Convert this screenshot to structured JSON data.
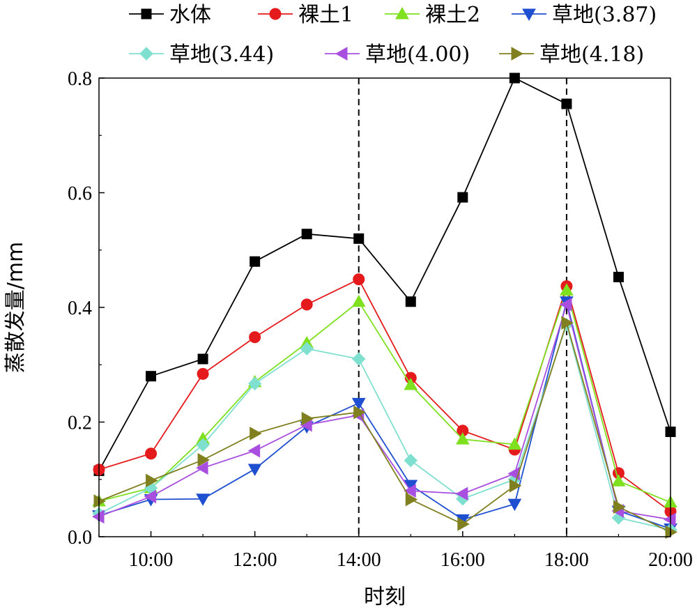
{
  "chart_data": {
    "type": "line",
    "xlabel": "时刻",
    "ylabel": "蒸散发量/mm",
    "x": [
      9,
      10,
      11,
      12,
      13,
      14,
      15,
      16,
      17,
      18,
      19,
      20
    ],
    "xlim": [
      9,
      20
    ],
    "ylim": [
      0,
      0.8
    ],
    "x_ticks": [
      10,
      12,
      14,
      16,
      18,
      20
    ],
    "x_tick_labels": [
      "10:00",
      "12:00",
      "14:00",
      "16:00",
      "18:00",
      "20:00"
    ],
    "y_ticks": [
      0,
      0.2,
      0.4,
      0.6,
      0.8
    ],
    "y_tick_labels": [
      "0.0",
      "0.2",
      "0.4",
      "0.6",
      "0.8"
    ],
    "reference_lines_x": [
      14,
      18
    ],
    "legend_position": "top",
    "grid": false,
    "series": [
      {
        "name": "水体",
        "color": "#000000",
        "marker": "square",
        "values": [
          0.115,
          0.28,
          0.31,
          0.48,
          0.528,
          0.52,
          0.41,
          0.592,
          0.8,
          0.755,
          0.453,
          0.183
        ]
      },
      {
        "name": "裸土1",
        "color": "#e41a1c",
        "marker": "circle",
        "values": [
          0.117,
          0.145,
          0.284,
          0.348,
          0.405,
          0.449,
          0.277,
          0.185,
          0.152,
          0.437,
          0.111,
          0.044
        ]
      },
      {
        "name": "裸土2",
        "color": "#7fe01f",
        "marker": "triangle-up",
        "values": [
          0.062,
          0.085,
          0.171,
          0.27,
          0.338,
          0.41,
          0.265,
          0.17,
          0.161,
          0.43,
          0.097,
          0.06
        ]
      },
      {
        "name": "草地(3.87)",
        "color": "#1f4fd1",
        "marker": "triangle-down",
        "values": [
          0.037,
          0.065,
          0.066,
          0.118,
          0.192,
          0.233,
          0.09,
          0.03,
          0.057,
          0.41,
          0.045,
          0.014
        ]
      },
      {
        "name": "草地(3.44)",
        "color": "#7fe0d0",
        "marker": "diamond",
        "values": [
          0.04,
          0.085,
          0.16,
          0.267,
          0.328,
          0.31,
          0.133,
          0.066,
          0.1,
          0.37,
          0.033,
          0.012
        ]
      },
      {
        "name": "草地(4.00)",
        "color": "#a84fe0",
        "marker": "triangle-left",
        "values": [
          0.035,
          0.07,
          0.12,
          0.15,
          0.195,
          0.212,
          0.08,
          0.075,
          0.11,
          0.405,
          0.045,
          0.03
        ]
      },
      {
        "name": "草地(4.18)",
        "color": "#808020",
        "marker": "triangle-right",
        "values": [
          0.062,
          0.098,
          0.134,
          0.18,
          0.206,
          0.217,
          0.065,
          0.022,
          0.089,
          0.373,
          0.052,
          0.008
        ]
      }
    ]
  }
}
